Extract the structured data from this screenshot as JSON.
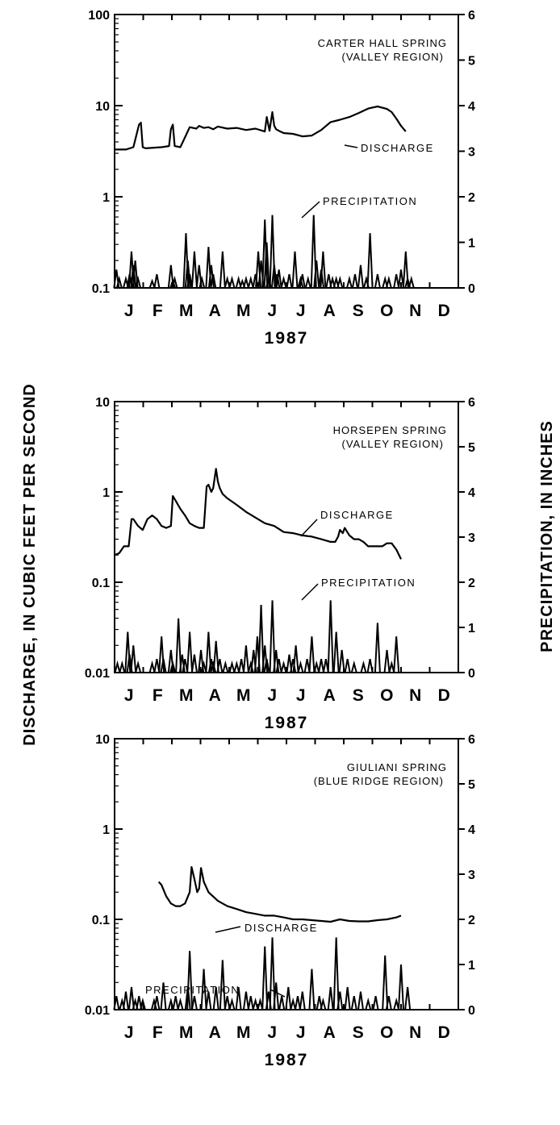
{
  "y_axis_left_label": "DISCHARGE, IN CUBIC FEET PER SECOND",
  "y_axis_right_label": "PRECIPITATION, IN INCHES",
  "chart_data": [
    {
      "type": "line",
      "title_line1": "CARTER HALL SPRING",
      "title_line2": "(VALLEY REGION)",
      "year_label": "1987",
      "months": [
        "J",
        "F",
        "M",
        "A",
        "M",
        "J",
        "J",
        "A",
        "S",
        "O",
        "N",
        "D"
      ],
      "left_axis": {
        "scale": "log",
        "range": [
          0.1,
          100
        ],
        "tick_labels": [
          "100",
          "10",
          "1",
          "0.1"
        ],
        "tick_values": [
          100,
          10,
          1,
          0.1
        ]
      },
      "right_axis": {
        "scale": "linear",
        "range": [
          0,
          6
        ],
        "tick_labels": [
          "6",
          "5",
          "4",
          "3",
          "2",
          "1",
          "0"
        ],
        "tick_values": [
          6,
          5,
          4,
          3,
          2,
          1,
          0
        ]
      },
      "discharge_label": "DISCHARGE",
      "precipitation_label": "PRECIPITATION",
      "series": [
        {
          "name": "DISCHARGE",
          "x": [
            0,
            12,
            20,
            26,
            28,
            30,
            33,
            50,
            58,
            60,
            62,
            64,
            70,
            75,
            80,
            87,
            90,
            95,
            100,
            105,
            110,
            120,
            130,
            140,
            150,
            160,
            162,
            165,
            168,
            170,
            172,
            175,
            180,
            190,
            200,
            210,
            220,
            230,
            240,
            250,
            260,
            270,
            280,
            290,
            295,
            300,
            305,
            310,
            320,
            330
          ],
          "values": [
            3.3,
            3.3,
            3.5,
            6.2,
            6.5,
            3.5,
            3.4,
            3.5,
            3.6,
            5.5,
            6.2,
            3.6,
            3.5,
            4.5,
            5.8,
            5.6,
            6.0,
            5.7,
            5.8,
            5.5,
            5.9,
            5.6,
            5.7,
            5.4,
            5.6,
            5.2,
            7.5,
            5.3,
            8.5,
            6.0,
            5.5,
            5.3,
            5.0,
            4.9,
            4.6,
            4.7,
            5.4,
            6.6,
            7.0,
            7.5,
            8.3,
            9.3,
            9.8,
            9.2,
            8.5,
            7.2,
            6.0,
            5.2,
            null,
            null
          ]
        },
        {
          "name": "PRECIPITATION",
          "x": [
            2,
            5,
            12,
            16,
            18,
            20,
            22,
            25,
            40,
            45,
            60,
            62,
            64,
            76,
            78,
            80,
            85,
            90,
            93,
            100,
            103,
            105,
            115,
            120,
            125,
            132,
            136,
            140,
            145,
            150,
            153,
            156,
            160,
            162,
            164,
            168,
            170,
            173,
            175,
            180,
            186,
            192,
            198,
            200,
            206,
            212,
            215,
            220,
            222,
            228,
            232,
            236,
            240,
            250,
            256,
            262,
            268,
            272,
            280,
            288,
            292,
            300,
            305,
            310,
            312,
            316
          ],
          "values": [
            0.4,
            0.2,
            0.2,
            0.3,
            0.8,
            0.5,
            0.6,
            0.2,
            0.15,
            0.3,
            0.5,
            0.15,
            0.2,
            1.2,
            0.6,
            0.3,
            0.8,
            0.5,
            0.2,
            0.9,
            0.5,
            0.3,
            0.8,
            0.2,
            0.2,
            0.2,
            0.15,
            0.2,
            0.2,
            0.3,
            0.8,
            0.6,
            1.5,
            1.0,
            0.2,
            1.6,
            0.5,
            0.3,
            0.4,
            0.2,
            0.3,
            0.8,
            0.2,
            0.3,
            0.2,
            1.6,
            0.6,
            0.4,
            0.8,
            0.3,
            0.2,
            0.2,
            0.2,
            0.2,
            0.3,
            0.5,
            0.2,
            1.2,
            0.3,
            0.2,
            0.2,
            0.3,
            0.4,
            0.8,
            0.2,
            0.2
          ]
        }
      ]
    },
    {
      "type": "line",
      "title_line1": "HORSEPEN SPRING",
      "title_line2": "(VALLEY REGION)",
      "year_label": "1987",
      "months": [
        "J",
        "F",
        "M",
        "A",
        "M",
        "J",
        "J",
        "A",
        "S",
        "O",
        "N",
        "D"
      ],
      "left_axis": {
        "scale": "log",
        "range": [
          0.01,
          10
        ],
        "tick_labels": [
          "10",
          "1",
          "0.1",
          "0.01"
        ],
        "tick_values": [
          10,
          1,
          0.1,
          0.01
        ]
      },
      "right_axis": {
        "scale": "linear",
        "range": [
          0,
          6
        ],
        "tick_labels": [
          "6",
          "5",
          "4",
          "3",
          "2",
          "1",
          "0"
        ],
        "tick_values": [
          6,
          5,
          4,
          3,
          2,
          1,
          0
        ]
      },
      "discharge_label": "DISCHARGE",
      "precipitation_label": "PRECIPITATION",
      "series": [
        {
          "name": "DISCHARGE",
          "x": [
            0,
            5,
            10,
            15,
            18,
            20,
            25,
            30,
            35,
            40,
            45,
            50,
            55,
            60,
            62,
            65,
            70,
            75,
            80,
            85,
            90,
            95,
            98,
            100,
            103,
            105,
            108,
            110,
            112,
            115,
            120,
            130,
            140,
            150,
            160,
            170,
            180,
            190,
            200,
            210,
            220,
            230,
            235,
            238,
            240,
            243,
            245,
            250,
            255,
            260,
            265,
            270,
            280,
            285,
            290,
            295,
            300,
            305
          ],
          "values": [
            0.2,
            0.21,
            0.25,
            0.25,
            0.5,
            0.5,
            0.42,
            0.38,
            0.5,
            0.55,
            0.5,
            0.42,
            0.4,
            0.42,
            0.9,
            0.8,
            0.65,
            0.55,
            0.45,
            0.42,
            0.4,
            0.4,
            1.15,
            1.2,
            1.0,
            1.1,
            1.8,
            1.3,
            1.1,
            0.95,
            0.85,
            0.72,
            0.6,
            0.52,
            0.45,
            0.42,
            0.36,
            0.35,
            0.33,
            0.32,
            0.3,
            0.28,
            0.28,
            0.32,
            0.38,
            0.35,
            0.4,
            0.33,
            0.3,
            0.3,
            0.28,
            0.25,
            0.25,
            0.25,
            0.27,
            0.27,
            0.23,
            0.18
          ]
        },
        {
          "name": "PRECIPITATION",
          "x": [
            3,
            8,
            14,
            16,
            20,
            25,
            40,
            45,
            50,
            52,
            60,
            62,
            68,
            72,
            75,
            80,
            85,
            92,
            95,
            100,
            103,
            105,
            108,
            112,
            118,
            125,
            130,
            135,
            140,
            145,
            148,
            152,
            156,
            160,
            162,
            168,
            172,
            175,
            180,
            186,
            190,
            193,
            198,
            205,
            210,
            215,
            220,
            225,
            230,
            236,
            242,
            248,
            255,
            265,
            272,
            280,
            290,
            295,
            300
          ],
          "values": [
            0.2,
            0.2,
            0.9,
            0.4,
            0.6,
            0.2,
            0.2,
            0.3,
            0.8,
            0.3,
            0.5,
            0.2,
            1.2,
            0.4,
            0.3,
            0.9,
            0.4,
            0.5,
            0.2,
            0.9,
            0.3,
            0.2,
            0.7,
            0.3,
            0.2,
            0.2,
            0.2,
            0.3,
            0.6,
            0.2,
            0.5,
            0.8,
            1.5,
            0.6,
            0.3,
            1.6,
            0.5,
            0.3,
            0.2,
            0.4,
            0.3,
            0.6,
            0.2,
            0.3,
            0.8,
            0.2,
            0.3,
            0.3,
            1.6,
            0.9,
            0.5,
            0.3,
            0.2,
            0.2,
            0.3,
            1.1,
            0.5,
            0.2,
            0.8
          ]
        }
      ]
    },
    {
      "type": "line",
      "title_line1": "GIULIANI SPRING",
      "title_line2": "(BLUE RIDGE REGION)",
      "year_label": "1987",
      "months": [
        "J",
        "F",
        "M",
        "A",
        "M",
        "J",
        "J",
        "A",
        "S",
        "O",
        "N",
        "D"
      ],
      "left_axis": {
        "scale": "log",
        "range": [
          0.01,
          10
        ],
        "tick_labels": [
          "10",
          "1",
          "0.1",
          "0.01"
        ],
        "tick_values": [
          10,
          1,
          0.1,
          0.01
        ]
      },
      "right_axis": {
        "scale": "linear",
        "range": [
          0,
          6
        ],
        "tick_labels": [
          "6",
          "5",
          "4",
          "3",
          "2",
          "1",
          "0"
        ],
        "tick_values": [
          6,
          5,
          4,
          3,
          2,
          1,
          0
        ]
      },
      "discharge_label": "DISCHARGE",
      "precipitation_label": "PRECIPITATION",
      "series": [
        {
          "name": "DISCHARGE",
          "x": [
            47,
            50,
            55,
            60,
            65,
            70,
            75,
            80,
            82,
            85,
            88,
            90,
            92,
            95,
            100,
            110,
            120,
            130,
            140,
            150,
            160,
            170,
            180,
            190,
            200,
            210,
            220,
            230,
            240,
            250,
            260,
            270,
            280,
            290,
            300,
            305
          ],
          "values": [
            0.26,
            0.24,
            0.18,
            0.15,
            0.14,
            0.14,
            0.15,
            0.2,
            0.38,
            0.28,
            0.2,
            0.22,
            0.37,
            0.26,
            0.2,
            0.16,
            0.14,
            0.13,
            0.12,
            0.115,
            0.11,
            0.11,
            0.105,
            0.1,
            0.1,
            0.098,
            0.096,
            0.094,
            0.1,
            0.096,
            0.095,
            0.095,
            0.098,
            0.1,
            0.105,
            0.11
          ]
        },
        {
          "name": "PRECIPITATION",
          "x": [
            2,
            8,
            12,
            18,
            22,
            26,
            30,
            42,
            45,
            52,
            60,
            65,
            70,
            78,
            80,
            85,
            95,
            100,
            108,
            115,
            120,
            125,
            132,
            140,
            145,
            150,
            155,
            160,
            164,
            168,
            172,
            178,
            185,
            190,
            195,
            200,
            210,
            218,
            222,
            230,
            236,
            240,
            248,
            255,
            262,
            270,
            278,
            288,
            292,
            300,
            305,
            312
          ],
          "values": [
            0.3,
            0.2,
            0.4,
            0.5,
            0.2,
            0.3,
            0.2,
            0.2,
            0.3,
            0.6,
            0.2,
            0.3,
            0.2,
            0.5,
            1.3,
            0.3,
            0.9,
            0.4,
            0.5,
            1.1,
            0.3,
            0.2,
            0.5,
            0.4,
            0.3,
            0.2,
            0.2,
            1.4,
            0.4,
            1.6,
            0.6,
            0.3,
            0.5,
            0.2,
            0.3,
            0.4,
            0.9,
            0.3,
            0.2,
            0.5,
            1.6,
            0.4,
            0.5,
            0.3,
            0.4,
            0.2,
            0.3,
            1.2,
            0.3,
            0.2,
            1.0,
            0.5
          ]
        }
      ]
    }
  ]
}
